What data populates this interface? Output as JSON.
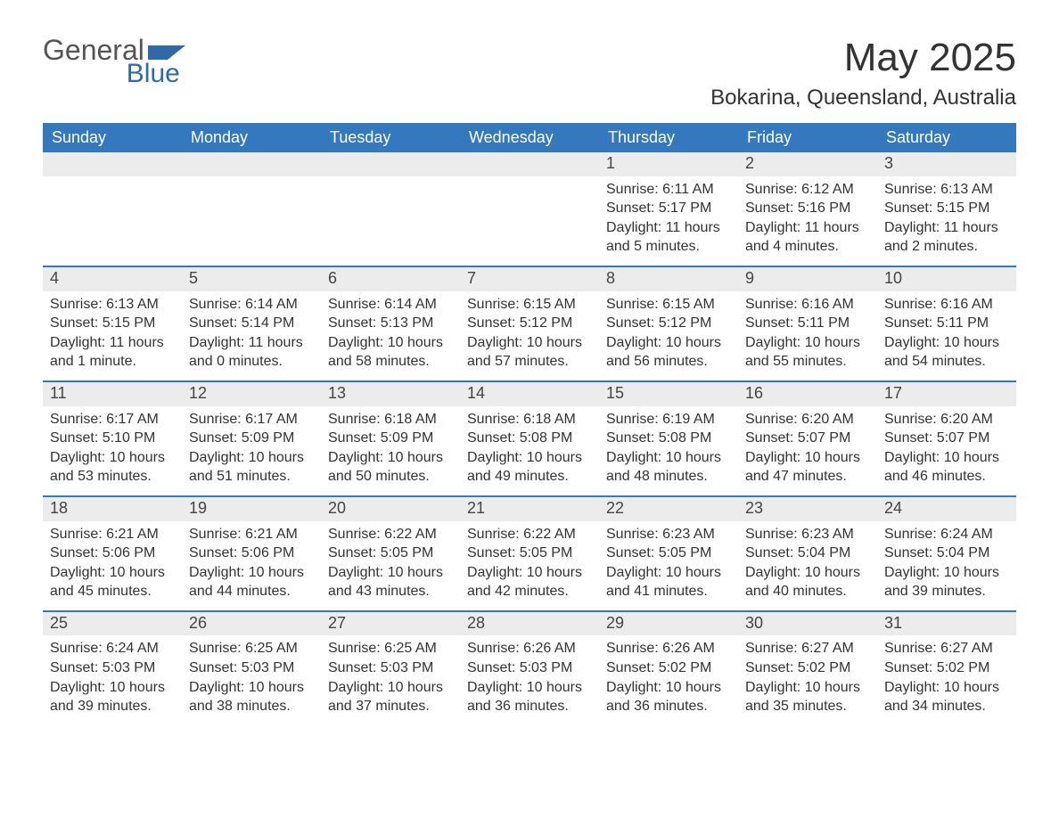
{
  "brand": {
    "word1": "General",
    "word2": "Blue",
    "word1_color": "#555555",
    "word2_color": "#2f6aa8",
    "icon_color": "#2f6aa8"
  },
  "title": "May 2025",
  "location": "Bokarina, Queensland, Australia",
  "colors": {
    "header_bg": "#3478bd",
    "header_text": "#ffffff",
    "daynum_bg": "#ececec",
    "daynum_text": "#444444",
    "body_text": "#333333",
    "rule": "#3478bd",
    "page_bg": "#ffffff"
  },
  "fonts": {
    "title_size_pt": 33,
    "location_size_pt": 18,
    "day_header_size_pt": 14,
    "daynum_size_pt": 14,
    "body_size_pt": 12
  },
  "day_names": [
    "Sunday",
    "Monday",
    "Tuesday",
    "Wednesday",
    "Thursday",
    "Friday",
    "Saturday"
  ],
  "weeks": [
    [
      {
        "num": "",
        "sunrise": "",
        "sunset": "",
        "daylight": ""
      },
      {
        "num": "",
        "sunrise": "",
        "sunset": "",
        "daylight": ""
      },
      {
        "num": "",
        "sunrise": "",
        "sunset": "",
        "daylight": ""
      },
      {
        "num": "",
        "sunrise": "",
        "sunset": "",
        "daylight": ""
      },
      {
        "num": "1",
        "sunrise": "Sunrise: 6:11 AM",
        "sunset": "Sunset: 5:17 PM",
        "daylight": "Daylight: 11 hours and 5 minutes."
      },
      {
        "num": "2",
        "sunrise": "Sunrise: 6:12 AM",
        "sunset": "Sunset: 5:16 PM",
        "daylight": "Daylight: 11 hours and 4 minutes."
      },
      {
        "num": "3",
        "sunrise": "Sunrise: 6:13 AM",
        "sunset": "Sunset: 5:15 PM",
        "daylight": "Daylight: 11 hours and 2 minutes."
      }
    ],
    [
      {
        "num": "4",
        "sunrise": "Sunrise: 6:13 AM",
        "sunset": "Sunset: 5:15 PM",
        "daylight": "Daylight: 11 hours and 1 minute."
      },
      {
        "num": "5",
        "sunrise": "Sunrise: 6:14 AM",
        "sunset": "Sunset: 5:14 PM",
        "daylight": "Daylight: 11 hours and 0 minutes."
      },
      {
        "num": "6",
        "sunrise": "Sunrise: 6:14 AM",
        "sunset": "Sunset: 5:13 PM",
        "daylight": "Daylight: 10 hours and 58 minutes."
      },
      {
        "num": "7",
        "sunrise": "Sunrise: 6:15 AM",
        "sunset": "Sunset: 5:12 PM",
        "daylight": "Daylight: 10 hours and 57 minutes."
      },
      {
        "num": "8",
        "sunrise": "Sunrise: 6:15 AM",
        "sunset": "Sunset: 5:12 PM",
        "daylight": "Daylight: 10 hours and 56 minutes."
      },
      {
        "num": "9",
        "sunrise": "Sunrise: 6:16 AM",
        "sunset": "Sunset: 5:11 PM",
        "daylight": "Daylight: 10 hours and 55 minutes."
      },
      {
        "num": "10",
        "sunrise": "Sunrise: 6:16 AM",
        "sunset": "Sunset: 5:11 PM",
        "daylight": "Daylight: 10 hours and 54 minutes."
      }
    ],
    [
      {
        "num": "11",
        "sunrise": "Sunrise: 6:17 AM",
        "sunset": "Sunset: 5:10 PM",
        "daylight": "Daylight: 10 hours and 53 minutes."
      },
      {
        "num": "12",
        "sunrise": "Sunrise: 6:17 AM",
        "sunset": "Sunset: 5:09 PM",
        "daylight": "Daylight: 10 hours and 51 minutes."
      },
      {
        "num": "13",
        "sunrise": "Sunrise: 6:18 AM",
        "sunset": "Sunset: 5:09 PM",
        "daylight": "Daylight: 10 hours and 50 minutes."
      },
      {
        "num": "14",
        "sunrise": "Sunrise: 6:18 AM",
        "sunset": "Sunset: 5:08 PM",
        "daylight": "Daylight: 10 hours and 49 minutes."
      },
      {
        "num": "15",
        "sunrise": "Sunrise: 6:19 AM",
        "sunset": "Sunset: 5:08 PM",
        "daylight": "Daylight: 10 hours and 48 minutes."
      },
      {
        "num": "16",
        "sunrise": "Sunrise: 6:20 AM",
        "sunset": "Sunset: 5:07 PM",
        "daylight": "Daylight: 10 hours and 47 minutes."
      },
      {
        "num": "17",
        "sunrise": "Sunrise: 6:20 AM",
        "sunset": "Sunset: 5:07 PM",
        "daylight": "Daylight: 10 hours and 46 minutes."
      }
    ],
    [
      {
        "num": "18",
        "sunrise": "Sunrise: 6:21 AM",
        "sunset": "Sunset: 5:06 PM",
        "daylight": "Daylight: 10 hours and 45 minutes."
      },
      {
        "num": "19",
        "sunrise": "Sunrise: 6:21 AM",
        "sunset": "Sunset: 5:06 PM",
        "daylight": "Daylight: 10 hours and 44 minutes."
      },
      {
        "num": "20",
        "sunrise": "Sunrise: 6:22 AM",
        "sunset": "Sunset: 5:05 PM",
        "daylight": "Daylight: 10 hours and 43 minutes."
      },
      {
        "num": "21",
        "sunrise": "Sunrise: 6:22 AM",
        "sunset": "Sunset: 5:05 PM",
        "daylight": "Daylight: 10 hours and 42 minutes."
      },
      {
        "num": "22",
        "sunrise": "Sunrise: 6:23 AM",
        "sunset": "Sunset: 5:05 PM",
        "daylight": "Daylight: 10 hours and 41 minutes."
      },
      {
        "num": "23",
        "sunrise": "Sunrise: 6:23 AM",
        "sunset": "Sunset: 5:04 PM",
        "daylight": "Daylight: 10 hours and 40 minutes."
      },
      {
        "num": "24",
        "sunrise": "Sunrise: 6:24 AM",
        "sunset": "Sunset: 5:04 PM",
        "daylight": "Daylight: 10 hours and 39 minutes."
      }
    ],
    [
      {
        "num": "25",
        "sunrise": "Sunrise: 6:24 AM",
        "sunset": "Sunset: 5:03 PM",
        "daylight": "Daylight: 10 hours and 39 minutes."
      },
      {
        "num": "26",
        "sunrise": "Sunrise: 6:25 AM",
        "sunset": "Sunset: 5:03 PM",
        "daylight": "Daylight: 10 hours and 38 minutes."
      },
      {
        "num": "27",
        "sunrise": "Sunrise: 6:25 AM",
        "sunset": "Sunset: 5:03 PM",
        "daylight": "Daylight: 10 hours and 37 minutes."
      },
      {
        "num": "28",
        "sunrise": "Sunrise: 6:26 AM",
        "sunset": "Sunset: 5:03 PM",
        "daylight": "Daylight: 10 hours and 36 minutes."
      },
      {
        "num": "29",
        "sunrise": "Sunrise: 6:26 AM",
        "sunset": "Sunset: 5:02 PM",
        "daylight": "Daylight: 10 hours and 36 minutes."
      },
      {
        "num": "30",
        "sunrise": "Sunrise: 6:27 AM",
        "sunset": "Sunset: 5:02 PM",
        "daylight": "Daylight: 10 hours and 35 minutes."
      },
      {
        "num": "31",
        "sunrise": "Sunrise: 6:27 AM",
        "sunset": "Sunset: 5:02 PM",
        "daylight": "Daylight: 10 hours and 34 minutes."
      }
    ]
  ]
}
